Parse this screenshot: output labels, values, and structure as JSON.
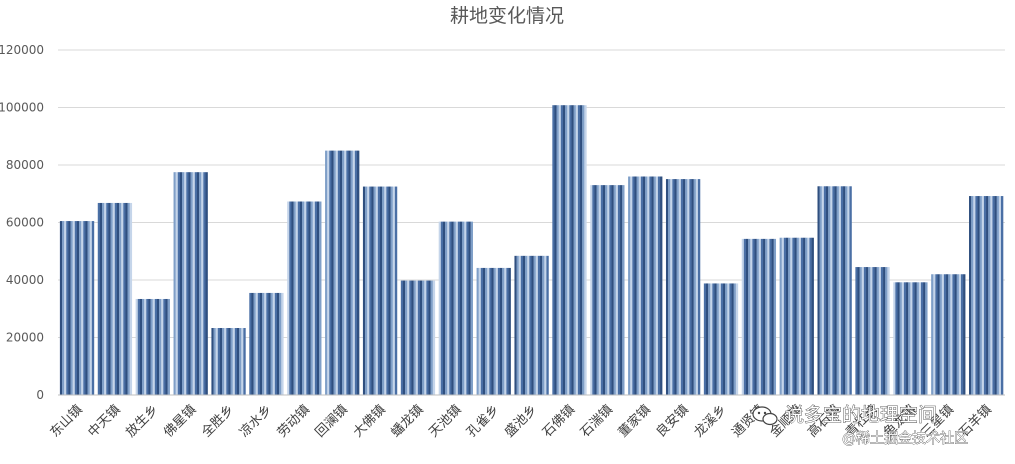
{
  "chart_data": {
    "type": "bar",
    "title": "耕地变化情况",
    "xlabel": "",
    "ylabel": "",
    "ylim": [
      0,
      120000
    ],
    "yticks": [
      "0",
      "20000",
      "40000",
      "60000",
      "80000",
      "100000",
      "120000"
    ],
    "grid": true,
    "legend": "none",
    "categories": [
      "东山镇",
      "中天镇",
      "放生乡",
      "佛星镇",
      "全胜乡",
      "凉水乡",
      "劳动镇",
      "回澜镇",
      "大佛镇",
      "蟠龙镇",
      "天池镇",
      "孔雀乡",
      "盛池乡",
      "石佛镇",
      "石湍镇",
      "董家镇",
      "良安镇",
      "龙溪乡",
      "通贤镇",
      "金顺镇",
      "高石镇",
      "青杠镇",
      "鱼龙镇",
      "三星镇",
      "石羊镇"
    ],
    "values": [
      60500,
      66800,
      33400,
      77500,
      23300,
      35500,
      67300,
      85000,
      72500,
      39800,
      60300,
      44200,
      48400,
      100800,
      73000,
      76000,
      75100,
      38800,
      54300,
      54700,
      72600,
      44500,
      39200,
      42000,
      69200
    ],
    "series_colors": [
      "#2f4f7f",
      "#4a6fa5",
      "#c5d5ea",
      "#7f9fc8"
    ]
  },
  "watermark": {
    "line1": "说多宝的地理空间",
    "line2": "@稀土掘金技术社区"
  }
}
